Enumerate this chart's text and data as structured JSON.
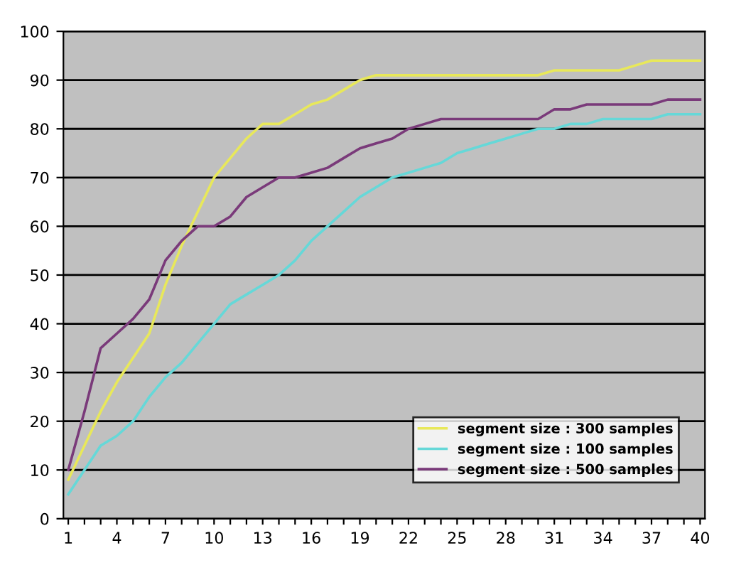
{
  "chart_data": {
    "type": "line",
    "categories": [
      "1",
      null,
      null,
      "4",
      null,
      null,
      "7",
      null,
      null,
      "10",
      null,
      null,
      "13",
      null,
      null,
      "16",
      null,
      null,
      "19",
      null,
      null,
      "22",
      null,
      null,
      "25",
      null,
      null,
      "28",
      null,
      null,
      "31",
      null,
      null,
      "34",
      null,
      null,
      "37",
      null,
      null,
      "40"
    ],
    "series": [
      {
        "name": "segment size : 300 samples",
        "color": "#e8e85a",
        "values": [
          8,
          15,
          22,
          28,
          33,
          38,
          48,
          56,
          63,
          70,
          74,
          78,
          81,
          81,
          83,
          85,
          86,
          88,
          90,
          91,
          91,
          91,
          91,
          91,
          91,
          91,
          91,
          91,
          91,
          91,
          92,
          92,
          92,
          92,
          92,
          93,
          94,
          94,
          94,
          94
        ]
      },
      {
        "name": "segment size : 100 samples",
        "color": "#66d8d8",
        "values": [
          5,
          10,
          15,
          17,
          20,
          25,
          29,
          32,
          36,
          40,
          44,
          46,
          48,
          50,
          53,
          57,
          60,
          63,
          66,
          68,
          70,
          71,
          72,
          73,
          75,
          76,
          77,
          78,
          79,
          80,
          80,
          81,
          81,
          82,
          82,
          82,
          82,
          83,
          83,
          83
        ]
      },
      {
        "name": "segment size : 500 samples",
        "color": "#7a3a7a",
        "values": [
          10,
          22,
          35,
          38,
          41,
          45,
          53,
          57,
          60,
          60,
          62,
          66,
          68,
          70,
          70,
          71,
          72,
          74,
          76,
          77,
          78,
          80,
          81,
          82,
          82,
          82,
          82,
          82,
          82,
          82,
          84,
          84,
          85,
          85,
          85,
          85,
          85,
          86,
          86,
          86
        ]
      }
    ],
    "ylim": [
      0,
      100
    ],
    "yticks": [
      0,
      10,
      20,
      30,
      40,
      50,
      60,
      70,
      80,
      90,
      100
    ],
    "grid": "y",
    "legend": "bottom right"
  }
}
